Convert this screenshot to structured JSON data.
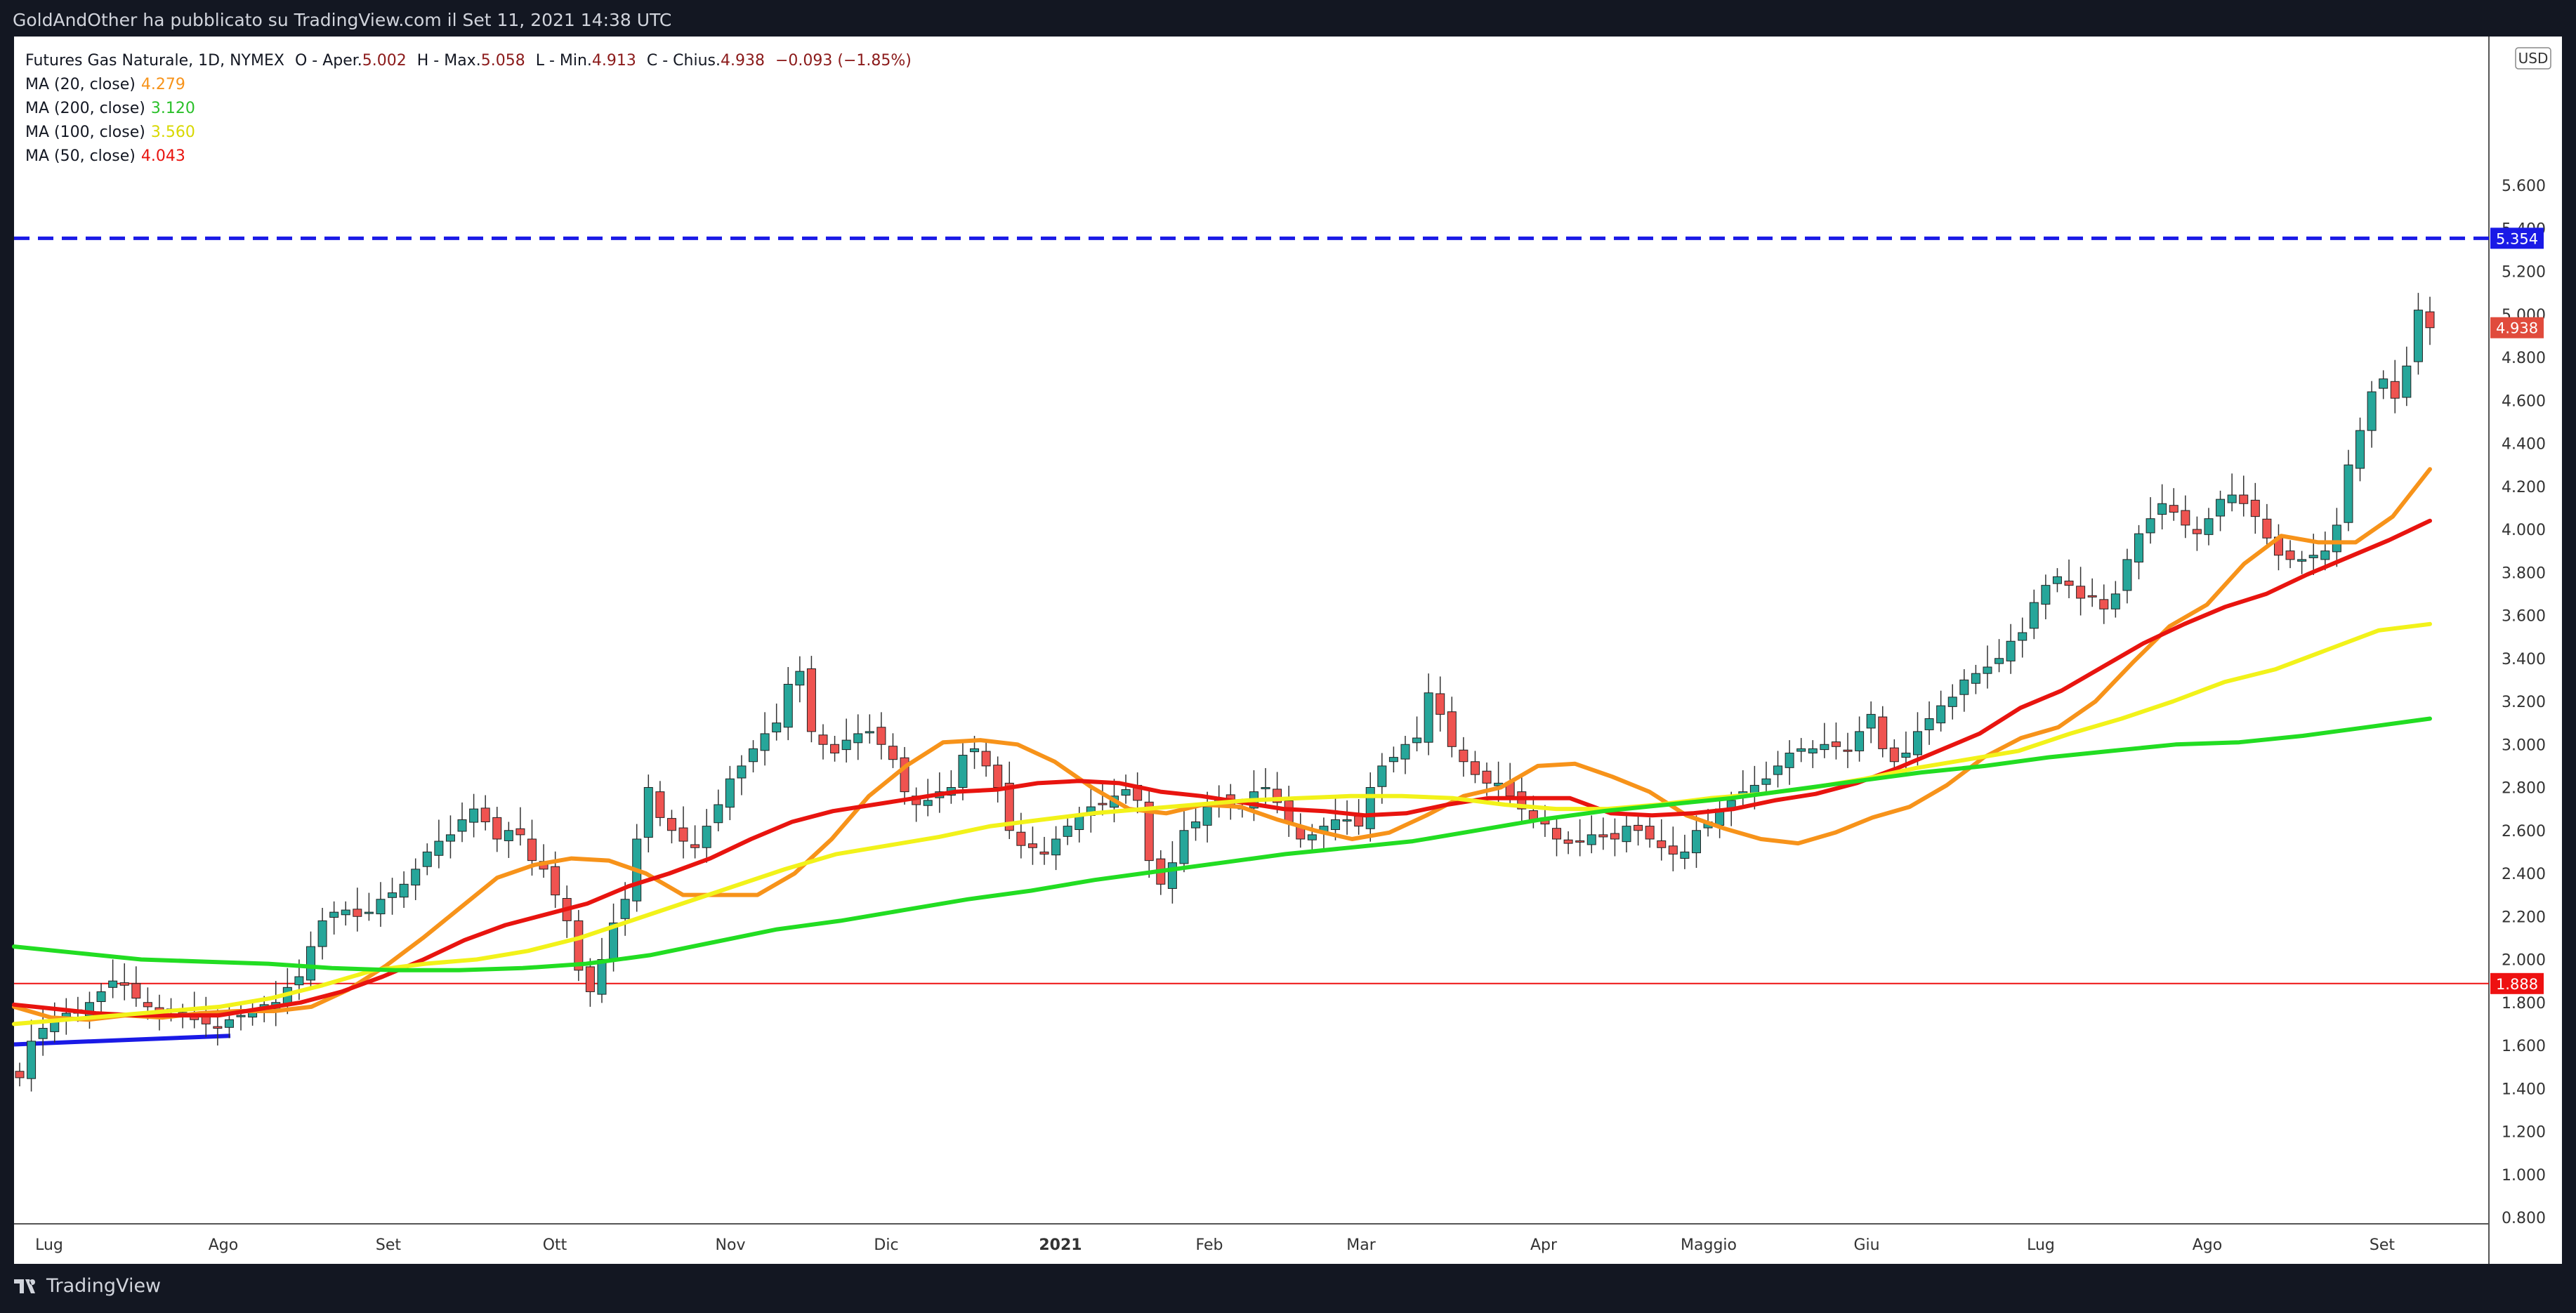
{
  "header": {
    "publish_text": "GoldAndOther ha pubblicato su TradingView.com il Set 11, 2021 14:38 UTC"
  },
  "footer": {
    "brand": "TradingView"
  },
  "legend": {
    "symbol": "Futures Gas Naturale, 1D, NYMEX",
    "o_label": "O - Aper.",
    "o_value": "5.002",
    "h_label": "H - Max.",
    "h_value": "5.058",
    "l_label": "L - Min.",
    "l_value": "4.913",
    "c_label": "C - Chius.",
    "c_value": "4.938",
    "change": "−0.093 (−1.85%)",
    "ma": [
      {
        "label": "MA (20, close)",
        "value": "4.279",
        "color": "#f7931a"
      },
      {
        "label": "MA (200, close)",
        "value": "3.120",
        "color": "#22dd22"
      },
      {
        "label": "MA (100, close)",
        "value": "3.560",
        "color": "#f2f21a"
      },
      {
        "label": "MA (50, close)",
        "value": "4.043",
        "color": "#e8140f"
      }
    ]
  },
  "price_axis": {
    "currency": "USD",
    "ticks": [
      "5.600",
      "5.400",
      "5.200",
      "5.000",
      "4.800",
      "4.600",
      "4.400",
      "4.200",
      "4.000",
      "3.800",
      "3.600",
      "3.400",
      "3.200",
      "3.000",
      "2.800",
      "2.600",
      "2.400",
      "2.200",
      "2.000",
      "1.800",
      "1.600",
      "1.400",
      "1.200",
      "1.000",
      "0.800"
    ],
    "tags": [
      {
        "text": "5.354",
        "value": 5.354,
        "color": "#1a1ae6"
      },
      {
        "text": "4.938",
        "value": 4.938,
        "color": "#e04b3c"
      },
      {
        "text": "1.888",
        "value": 1.888,
        "color": "#ee1111"
      }
    ]
  },
  "time_axis": {
    "labels": [
      "Lug",
      "Ago",
      "Set",
      "Ott",
      "Nov",
      "Dic",
      "2021",
      "Feb",
      "Mar",
      "Apr",
      "Maggio",
      "Giu",
      "Lug",
      "Ago",
      "Set"
    ]
  },
  "chart_data": {
    "type": "candlestick",
    "title": "Futures Gas Naturale, 1D, NYMEX",
    "ylim": [
      0.8,
      5.6
    ],
    "y_scale": "linear",
    "grid": false,
    "colors": {
      "up": "#26a69a",
      "down": "#ef5350"
    },
    "horizontal_lines": [
      {
        "value": 5.354,
        "style": "dashed",
        "color": "#1a1ae6"
      },
      {
        "value": 1.888,
        "style": "solid",
        "color": "#ee1111"
      }
    ],
    "trendline": {
      "from": {
        "month": "Lug",
        "value": 1.605
      },
      "to": {
        "month": "Ago",
        "value": 1.645
      },
      "color": "#1a1ae6"
    },
    "series": [
      {
        "name": "MA (20, close)",
        "color": "#f7931a",
        "values": [
          1.78,
          1.73,
          1.72,
          1.74,
          1.73,
          1.75,
          1.76,
          1.76,
          1.78,
          1.86,
          1.97,
          2.1,
          2.24,
          2.38,
          2.44,
          2.47,
          2.46,
          2.4,
          2.3,
          2.3,
          2.3,
          2.4,
          2.56,
          2.76,
          2.9,
          3.01,
          3.02,
          3.0,
          2.92,
          2.8,
          2.7,
          2.68,
          2.72,
          2.71,
          2.65,
          2.6,
          2.56,
          2.59,
          2.67,
          2.76,
          2.8,
          2.9,
          2.91,
          2.85,
          2.78,
          2.67,
          2.61,
          2.56,
          2.54,
          2.59,
          2.66,
          2.71,
          2.81,
          2.94,
          3.03,
          3.08,
          3.2,
          3.38,
          3.55,
          3.65,
          3.84,
          3.97,
          3.94,
          3.94,
          4.06,
          4.28
        ]
      },
      {
        "name": "MA (50, close)",
        "color": "#e8140f",
        "values": [
          1.79,
          1.77,
          1.75,
          1.74,
          1.74,
          1.74,
          1.77,
          1.8,
          1.85,
          1.92,
          2.0,
          2.09,
          2.16,
          2.21,
          2.26,
          2.34,
          2.4,
          2.47,
          2.56,
          2.64,
          2.69,
          2.72,
          2.75,
          2.78,
          2.79,
          2.82,
          2.83,
          2.82,
          2.78,
          2.76,
          2.73,
          2.7,
          2.69,
          2.67,
          2.68,
          2.72,
          2.75,
          2.75,
          2.75,
          2.68,
          2.67,
          2.68,
          2.7,
          2.74,
          2.77,
          2.82,
          2.89,
          2.97,
          3.05,
          3.17,
          3.25,
          3.36,
          3.47,
          3.56,
          3.64,
          3.7,
          3.79,
          3.87,
          3.95,
          4.04
        ]
      },
      {
        "name": "MA (100, close)",
        "color": "#f2f21a",
        "values": [
          1.7,
          1.72,
          1.74,
          1.76,
          1.78,
          1.82,
          1.88,
          1.95,
          1.98,
          2.0,
          2.04,
          2.1,
          2.18,
          2.26,
          2.34,
          2.42,
          2.49,
          2.53,
          2.57,
          2.62,
          2.65,
          2.68,
          2.7,
          2.72,
          2.74,
          2.75,
          2.76,
          2.76,
          2.75,
          2.72,
          2.7,
          2.7,
          2.72,
          2.75,
          2.77,
          2.8,
          2.84,
          2.89,
          2.93,
          2.97,
          3.05,
          3.12,
          3.2,
          3.29,
          3.35,
          3.44,
          3.53,
          3.56
        ]
      },
      {
        "name": "MA (200, close)",
        "color": "#22dd22",
        "values": [
          2.06,
          2.03,
          2.0,
          1.99,
          1.98,
          1.96,
          1.95,
          1.95,
          1.96,
          1.98,
          2.02,
          2.08,
          2.14,
          2.18,
          2.23,
          2.28,
          2.32,
          2.37,
          2.41,
          2.45,
          2.49,
          2.52,
          2.55,
          2.6,
          2.65,
          2.69,
          2.72,
          2.75,
          2.79,
          2.83,
          2.87,
          2.9,
          2.94,
          2.97,
          3.0,
          3.01,
          3.04,
          3.08,
          3.12
        ]
      }
    ],
    "candles": {
      "close": [
        1.45,
        1.62,
        1.68,
        1.72,
        1.75,
        1.75,
        1.8,
        1.85,
        1.9,
        1.88,
        1.82,
        1.78,
        1.75,
        1.77,
        1.75,
        1.72,
        1.7,
        1.68,
        1.72,
        1.74,
        1.76,
        1.79,
        1.8,
        1.87,
        1.92,
        2.06,
        2.18,
        2.22,
        2.23,
        2.2,
        2.22,
        2.28,
        2.31,
        2.35,
        2.42,
        2.5,
        2.55,
        2.58,
        2.65,
        2.7,
        2.64,
        2.56,
        2.6,
        2.58,
        2.46,
        2.42,
        2.3,
        2.18,
        1.95,
        1.85,
        2.0,
        2.17,
        2.28,
        2.56,
        2.8,
        2.66,
        2.6,
        2.55,
        2.52,
        2.62,
        2.72,
        2.84,
        2.9,
        2.98,
        3.05,
        3.1,
        3.28,
        3.34,
        3.06,
        3.0,
        2.96,
        3.02,
        3.05,
        3.06,
        3.0,
        2.93,
        2.78,
        2.72,
        2.74,
        2.78,
        2.8,
        2.95,
        2.98,
        2.9,
        2.8,
        2.6,
        2.53,
        2.52,
        2.49,
        2.56,
        2.62,
        2.67,
        2.71,
        2.72,
        2.76,
        2.79,
        2.74,
        2.46,
        2.35,
        2.45,
        2.6,
        2.64,
        2.71,
        2.75,
        2.72,
        2.7,
        2.78,
        2.8,
        2.73,
        2.64,
        2.56,
        2.58,
        2.62,
        2.65,
        2.65,
        2.62,
        2.8,
        2.9,
        2.94,
        3.0,
        3.03,
        3.24,
        3.14,
        2.99,
        2.92,
        2.86,
        2.82,
        2.82,
        2.76,
        2.7,
        2.65,
        2.63,
        2.56,
        2.54,
        2.55,
        2.58,
        2.57,
        2.56,
        2.62,
        2.6,
        2.56,
        2.52,
        2.49,
        2.5,
        2.6,
        2.64,
        2.7,
        2.74,
        2.78,
        2.81,
        2.84,
        2.9,
        2.96,
        2.98,
        2.98,
        3.0,
        2.99,
        2.97,
        3.06,
        3.14,
        2.98,
        2.92,
        2.96,
        3.06,
        3.12,
        3.18,
        3.22,
        3.3,
        3.33,
        3.36,
        3.4,
        3.48,
        3.52,
        3.66,
        3.74,
        3.78,
        3.74,
        3.68,
        3.69,
        3.63,
        3.7,
        3.86,
        3.98,
        4.05,
        4.12,
        4.08,
        4.02,
        3.98,
        4.05,
        4.14,
        4.16,
        4.12,
        4.06,
        3.96,
        3.88,
        3.86,
        3.86,
        3.88,
        3.9,
        4.02,
        4.3,
        4.46,
        4.64,
        4.7,
        4.61,
        4.76,
        5.02,
        4.938
      ]
    }
  }
}
